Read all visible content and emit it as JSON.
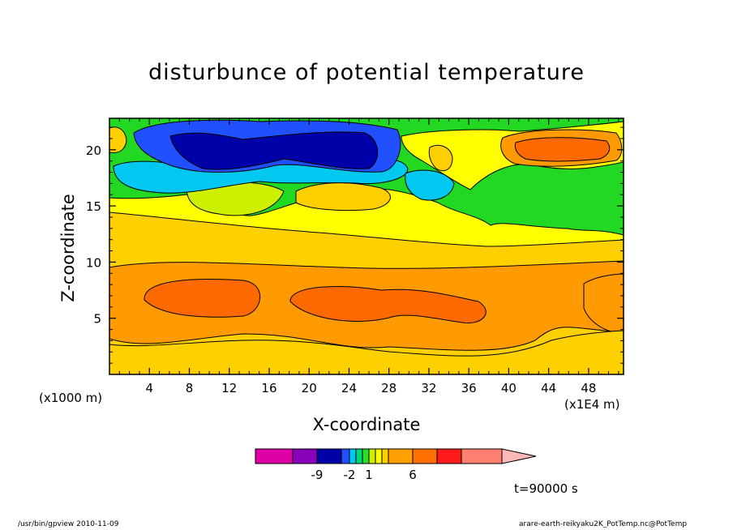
{
  "chart_data": {
    "type": "heatmap",
    "title": "disturbunce of potential temperature",
    "xlabel": "X-coordinate",
    "ylabel": "Z-coordinate",
    "x_unit_label": "(x1000 m)",
    "x_scale_label": "(x1E4 m)",
    "xlim": [
      0,
      51.5
    ],
    "ylim": [
      0,
      22.8
    ],
    "x_ticks": [
      4,
      8,
      12,
      16,
      20,
      24,
      28,
      32,
      36,
      40,
      44,
      48
    ],
    "y_ticks": [
      5,
      10,
      15,
      20
    ],
    "time_label": "t=90000 s",
    "grid": false,
    "approx_field_bands": [
      {
        "z_range": [
          0,
          2.5
        ],
        "level": "1 to 6"
      },
      {
        "z_range": [
          2.5,
          9.5
        ],
        "level": "6"
      },
      {
        "z_range": [
          9.5,
          14.5
        ],
        "level": "1 to 6"
      },
      {
        "z_range": [
          14.5,
          17
        ],
        "level": "0 to 1"
      },
      {
        "z_range": [
          17,
          22.8
        ],
        "level": "-9 to 6"
      }
    ],
    "colorbar": {
      "labels": [
        "-9",
        "-2",
        "1",
        "6"
      ],
      "colors": [
        "#e000a8",
        "#8800b8",
        "#0000a8",
        "#2050ff",
        "#00c8f0",
        "#00d878",
        "#28e028",
        "#c8f000",
        "#ffff00",
        "#ffd000",
        "#ffa000",
        "#ff7000",
        "#ff1a1a",
        "#ff8070",
        "#ffb8b8"
      ]
    }
  },
  "footer": {
    "left": "/usr/bin/gpview   2010-11-09",
    "right": "arare-earth-reikyaku2K_PotTemp.nc@PotTemp"
  }
}
